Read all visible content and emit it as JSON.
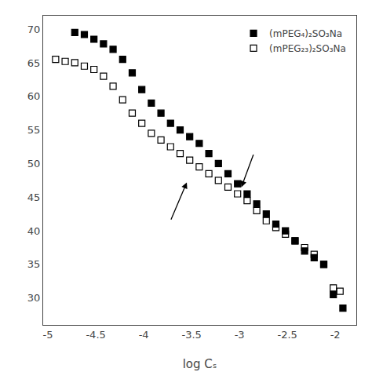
{
  "chart_data": {
    "type": "scatter",
    "xlabel": "log Cₛ",
    "xlim": [
      -5.05,
      -1.78
    ],
    "ylim": [
      26,
      72
    ],
    "xticks": [
      -5.0,
      -4.5,
      -4.0,
      -3.5,
      -3.0,
      -2.5,
      -2.0
    ],
    "yticks": [
      30,
      35,
      40,
      45,
      50,
      55,
      60,
      65,
      70
    ],
    "grid": false,
    "legend": "upper right",
    "series": [
      {
        "name": "(mPEG₄)₂SO₃Na",
        "color": "#000000",
        "marker": "square",
        "x": [
          -4.72,
          -4.62,
          -4.52,
          -4.42,
          -4.32,
          -4.22,
          -4.12,
          -4.02,
          -3.92,
          -3.82,
          -3.72,
          -3.62,
          -3.52,
          -3.42,
          -3.32,
          -3.22,
          -3.12,
          -3.02,
          -2.92,
          -2.82,
          -2.72,
          -2.62,
          -2.52,
          -2.42,
          -2.32,
          -2.22,
          -2.12,
          -2.02,
          -1.92
        ],
        "values": [
          69.5,
          69.2,
          68.5,
          67.8,
          67.0,
          65.5,
          63.5,
          61.0,
          59.0,
          57.5,
          56.0,
          55.0,
          54.0,
          53.0,
          51.5,
          50.0,
          48.5,
          47.0,
          45.5,
          44.0,
          42.5,
          41.0,
          40.0,
          38.5,
          37.0,
          36.0,
          35.0,
          30.5,
          28.5
        ]
      },
      {
        "name": "(mPEG₂₃)₂SO₃Na",
        "color": "#000000",
        "marker": "square-open",
        "x": [
          -4.92,
          -4.82,
          -4.72,
          -4.62,
          -4.52,
          -4.42,
          -4.32,
          -4.22,
          -4.12,
          -4.02,
          -3.92,
          -3.82,
          -3.72,
          -3.62,
          -3.52,
          -3.42,
          -3.32,
          -3.22,
          -3.12,
          -3.02,
          -2.92,
          -2.82,
          -2.72,
          -2.62,
          -2.52,
          -2.42,
          -2.32,
          -2.22,
          -2.12,
          -2.02,
          -1.95
        ],
        "values": [
          65.5,
          65.2,
          65.0,
          64.5,
          64.0,
          63.0,
          61.5,
          59.5,
          57.5,
          56.0,
          54.5,
          53.5,
          52.5,
          51.5,
          50.5,
          49.5,
          48.5,
          47.5,
          46.5,
          45.5,
          44.5,
          43.0,
          41.5,
          40.5,
          39.5,
          38.5,
          37.5,
          36.5,
          35.0,
          31.5,
          31.0
        ]
      }
    ],
    "arrows": [
      {
        "from": [
          -3.72,
          41.5
        ],
        "to": [
          -3.55,
          47.2
        ]
      },
      {
        "from": [
          -2.85,
          51.5
        ],
        "to": [
          -2.98,
          46.5
        ]
      }
    ]
  }
}
